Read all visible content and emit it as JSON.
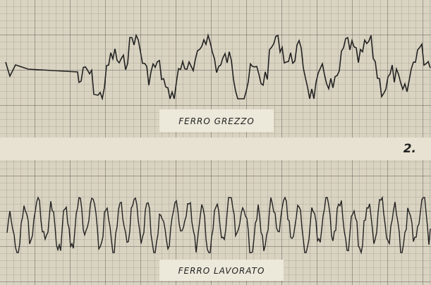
{
  "panels": [
    {
      "label": "FERRO GREZZO"
    },
    {
      "label": "FERRO LAVORATO"
    }
  ],
  "figure_number": "2."
}
